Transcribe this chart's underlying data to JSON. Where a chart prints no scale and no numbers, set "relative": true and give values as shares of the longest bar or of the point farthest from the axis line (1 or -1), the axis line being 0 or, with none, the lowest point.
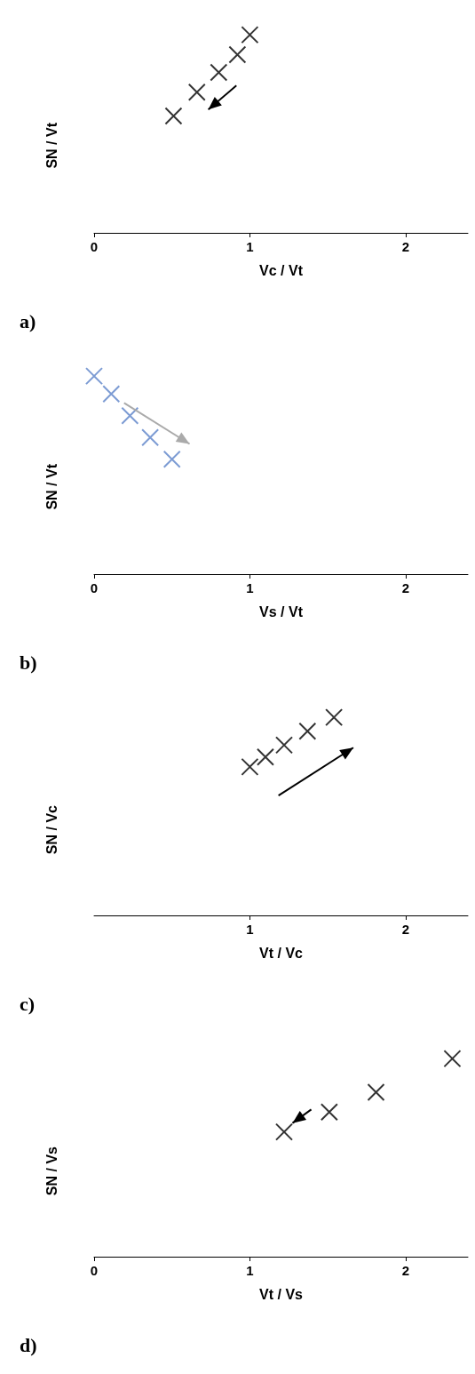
{
  "chart_data": [
    {
      "type": "scatter",
      "xlabel": "Vc / Vt",
      "ylabel": "SN / Vt",
      "relative": true,
      "x": [
        0.51,
        0.66,
        0.8,
        0.92,
        1.0
      ],
      "xlim": [
        0,
        2.4
      ],
      "xticks": [
        0,
        1,
        2
      ],
      "marker": "cross",
      "series": [
        {
          "color": "#000000",
          "values": [
            0.59,
            0.71,
            0.81,
            0.9,
            1
          ]
        }
      ],
      "annotations": [
        "a)"
      ]
    },
    {
      "type": "scatter",
      "xlabel": "Vs / Vt",
      "ylabel": "SN / Vt",
      "relative": true,
      "x": [
        0,
        0.11,
        0.23,
        0.36,
        0.5
      ],
      "xlim": [
        0,
        2.4
      ],
      "xticks": [
        0,
        1,
        2
      ],
      "marker": "cross",
      "series": [
        {
          "color": "#5b82c8",
          "values": [
            1,
            0.91,
            0.8,
            0.69,
            0.58
          ]
        }
      ],
      "annotations": [
        "b)"
      ]
    },
    {
      "type": "scatter",
      "xlabel": "Vt / Vc",
      "ylabel": "SN / Vc",
      "relative": true,
      "x": [
        1,
        1.1,
        1.22,
        1.37,
        1.54
      ],
      "xlim": [
        0,
        2.4
      ],
      "xticks": [
        1,
        2
      ],
      "marker": "cross",
      "series": [
        {
          "color": "#000000",
          "values": [
            0.75,
            0.8,
            0.86,
            0.93,
            1
          ]
        }
      ],
      "annotations": [
        "c)"
      ]
    },
    {
      "type": "scatter",
      "xlabel": "Vt / Vs",
      "ylabel": "SN / Vs",
      "relative": true,
      "x": [
        1.22,
        1.51,
        1.81,
        2.3
      ],
      "xlim": [
        0,
        2.4
      ],
      "xticks": [
        0,
        1,
        2
      ],
      "marker": "cross",
      "series": [
        {
          "color": "#000000",
          "values": [
            0.63,
            0.73,
            0.83,
            1
          ]
        }
      ],
      "annotations": [
        "d)"
      ]
    }
  ]
}
